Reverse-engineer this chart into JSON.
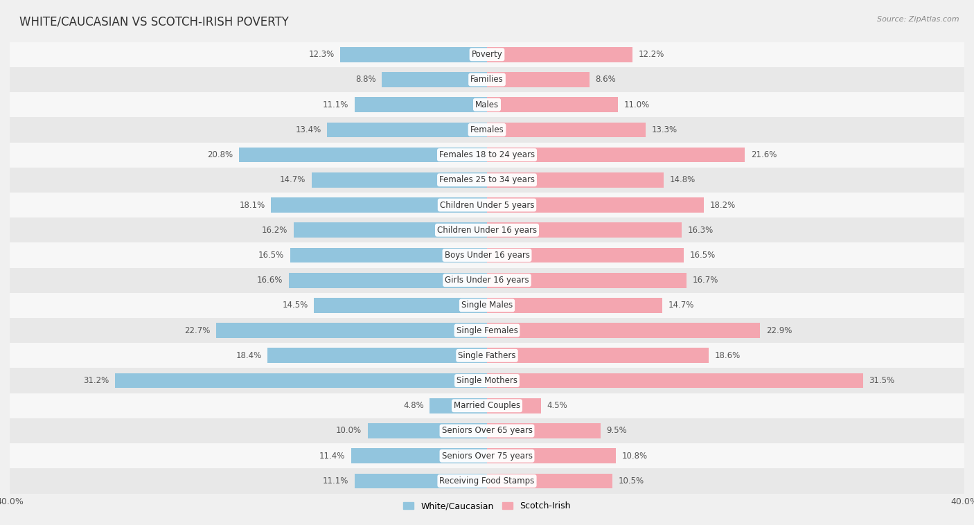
{
  "title": "WHITE/CAUCASIAN VS SCOTCH-IRISH POVERTY",
  "source": "Source: ZipAtlas.com",
  "categories": [
    "Poverty",
    "Families",
    "Males",
    "Females",
    "Females 18 to 24 years",
    "Females 25 to 34 years",
    "Children Under 5 years",
    "Children Under 16 years",
    "Boys Under 16 years",
    "Girls Under 16 years",
    "Single Males",
    "Single Females",
    "Single Fathers",
    "Single Mothers",
    "Married Couples",
    "Seniors Over 65 years",
    "Seniors Over 75 years",
    "Receiving Food Stamps"
  ],
  "white_values": [
    12.3,
    8.8,
    11.1,
    13.4,
    20.8,
    14.7,
    18.1,
    16.2,
    16.5,
    16.6,
    14.5,
    22.7,
    18.4,
    31.2,
    4.8,
    10.0,
    11.4,
    11.1
  ],
  "scotch_values": [
    12.2,
    8.6,
    11.0,
    13.3,
    21.6,
    14.8,
    18.2,
    16.3,
    16.5,
    16.7,
    14.7,
    22.9,
    18.6,
    31.5,
    4.5,
    9.5,
    10.8,
    10.5
  ],
  "white_color": "#92c5de",
  "scotch_color": "#f4a6b0",
  "white_label": "White/Caucasian",
  "scotch_label": "Scotch-Irish",
  "xlim": 40.0,
  "bar_height": 0.6,
  "bg_color": "#f0f0f0",
  "row_color_light": "#f7f7f7",
  "row_color_dark": "#e8e8e8",
  "title_fontsize": 12,
  "label_fontsize": 8.5,
  "value_fontsize": 8.5
}
